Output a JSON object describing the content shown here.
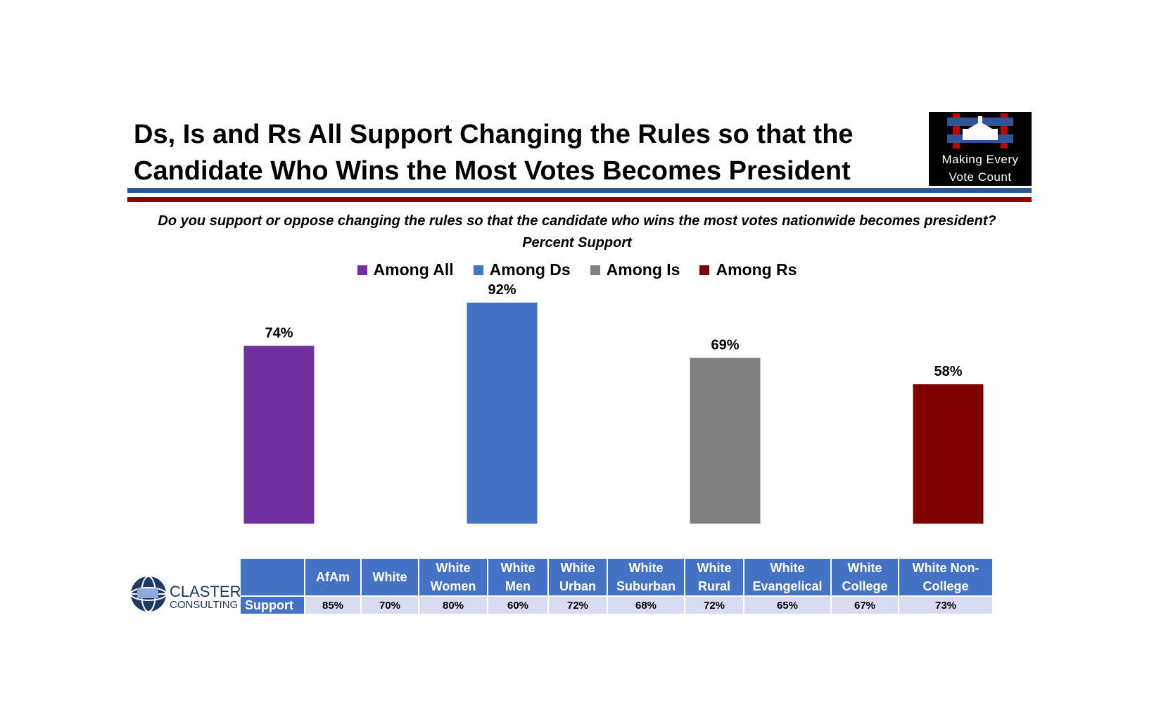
{
  "title": {
    "line1": "Ds, Is and Rs All Support Changing the Rules so that the",
    "line2": "Candidate Who Wins the Most Votes Becomes President"
  },
  "logo": {
    "line1": "Making Every",
    "line2": "Vote Count"
  },
  "question": "Do you support or oppose changing the rules so that the candidate who wins the most votes nationwide becomes president?",
  "subtitle": "Percent Support",
  "colors": {
    "all": "#7030A0",
    "ds": "#4472C4",
    "is": "#808080",
    "rs": "#800000",
    "rule_blue": "#2F5597",
    "rule_red": "#8B0000",
    "table_header": "#4472C4",
    "table_cell": "#D9DCF0"
  },
  "chart_data": {
    "type": "bar",
    "title": "Percent Support",
    "categories": [
      "Among All",
      "Among Ds",
      "Among Is",
      "Among Rs"
    ],
    "values": [
      74,
      92,
      69,
      58
    ],
    "value_labels": [
      "74%",
      "92%",
      "69%",
      "58%"
    ],
    "colors": [
      "#7030A0",
      "#4472C4",
      "#808080",
      "#800000"
    ],
    "ylim": [
      0,
      100
    ],
    "grid": false,
    "legend": "top"
  },
  "table": {
    "row_label": "Support",
    "columns": [
      {
        "header": [
          "AfAm"
        ],
        "value": "85%"
      },
      {
        "header": [
          "White"
        ],
        "value": "70%"
      },
      {
        "header": [
          "White",
          "Women"
        ],
        "value": "80%"
      },
      {
        "header": [
          "White",
          "Men"
        ],
        "value": "60%"
      },
      {
        "header": [
          "White",
          "Urban"
        ],
        "value": "72%"
      },
      {
        "header": [
          "White",
          "Suburban"
        ],
        "value": "68%"
      },
      {
        "header": [
          "White",
          "Rural"
        ],
        "value": "72%"
      },
      {
        "header": [
          "White",
          "Evangelical"
        ],
        "value": "65%"
      },
      {
        "header": [
          "White",
          "College"
        ],
        "value": "67%"
      },
      {
        "header": [
          "White Non-",
          "College"
        ],
        "value": "73%"
      }
    ]
  },
  "claster_logo": {
    "line1": "CLASTER",
    "line2": "CONSULTING"
  }
}
